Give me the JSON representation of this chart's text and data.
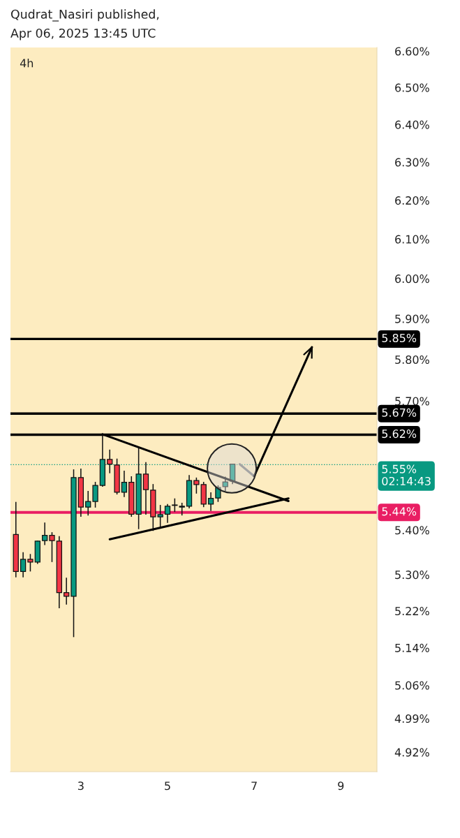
{
  "chart_data": {
    "type": "candlestick",
    "title": "Qudrat_Nasiri published,",
    "subtitle": "Apr 06, 2025 13:45 UTC",
    "annotations": [
      "4h"
    ],
    "log": true,
    "ylim": [
      4.88,
      6.61
    ],
    "yticks": [
      {
        "value": 4.92,
        "label": "4.92%"
      },
      {
        "value": 4.99,
        "label": "4.99%"
      },
      {
        "value": 5.06,
        "label": "5.06%"
      },
      {
        "value": 5.14,
        "label": "5.14%"
      },
      {
        "value": 5.22,
        "label": "5.22%"
      },
      {
        "value": 5.3,
        "label": "5.30%"
      },
      {
        "value": 5.4,
        "label": "5.40%"
      },
      {
        "value": 5.7,
        "label": "5.70%"
      },
      {
        "value": 5.8,
        "label": "5.80%"
      },
      {
        "value": 5.9,
        "label": "5.90%"
      },
      {
        "value": 6.0,
        "label": "6.00%"
      },
      {
        "value": 6.1,
        "label": "6.10%"
      },
      {
        "value": 6.2,
        "label": "6.20%"
      },
      {
        "value": 6.3,
        "label": "6.30%"
      },
      {
        "value": 6.4,
        "label": "6.40%"
      },
      {
        "value": 6.5,
        "label": "6.50%"
      },
      {
        "value": 6.6,
        "label": "6.60%"
      }
    ],
    "xlim": [
      "2025-04-01T09:00",
      "2025-04-09T20:00"
    ],
    "xticks": [
      {
        "value": "2025-04-03",
        "label": "3"
      },
      {
        "value": "2025-04-05",
        "label": "5"
      },
      {
        "value": "2025-04-07",
        "label": "7"
      },
      {
        "value": "2025-04-09",
        "label": "9"
      }
    ],
    "grid": false,
    "legend": false,
    "series": [
      {
        "x": [
          "2025-04-01T12:00",
          "2025-04-01T16:00",
          "2025-04-01T20:00",
          "2025-04-02T00:00",
          "2025-04-02T04:00",
          "2025-04-02T08:00",
          "2025-04-02T12:00",
          "2025-04-02T16:00",
          "2025-04-02T20:00",
          "2025-04-03T00:00",
          "2025-04-03T04:00",
          "2025-04-03T08:00",
          "2025-04-03T12:00",
          "2025-04-03T16:00",
          "2025-04-03T20:00",
          "2025-04-04T00:00",
          "2025-04-04T04:00",
          "2025-04-04T08:00",
          "2025-04-04T12:00",
          "2025-04-04T16:00",
          "2025-04-04T20:00",
          "2025-04-05T00:00",
          "2025-04-05T04:00",
          "2025-04-05T08:00",
          "2025-04-05T12:00",
          "2025-04-05T16:00",
          "2025-04-05T20:00",
          "2025-04-06T00:00",
          "2025-04-06T04:00",
          "2025-04-06T08:00",
          "2025-04-06T12:00"
        ],
        "ohlc": [
          [
            5.39,
            5.464,
            5.294,
            5.307
          ],
          [
            5.307,
            5.35,
            5.294,
            5.334
          ],
          [
            5.334,
            5.346,
            5.307,
            5.328
          ],
          [
            5.328,
            5.376,
            5.324,
            5.375
          ],
          [
            5.376,
            5.417,
            5.366,
            5.388
          ],
          [
            5.388,
            5.395,
            5.328,
            5.376
          ],
          [
            5.375,
            5.386,
            5.226,
            5.26
          ],
          [
            5.26,
            5.293,
            5.234,
            5.252
          ],
          [
            5.252,
            5.539,
            5.163,
            5.52
          ],
          [
            5.52,
            5.541,
            5.43,
            5.452
          ],
          [
            5.452,
            5.489,
            5.433,
            5.465
          ],
          [
            5.465,
            5.51,
            5.451,
            5.502
          ],
          [
            5.502,
            5.621,
            5.499,
            5.562
          ],
          [
            5.562,
            5.585,
            5.53,
            5.551
          ],
          [
            5.549,
            5.564,
            5.481,
            5.486
          ],
          [
            5.486,
            5.536,
            5.475,
            5.509
          ],
          [
            5.509,
            5.523,
            5.43,
            5.436
          ],
          [
            5.436,
            5.59,
            5.402,
            5.528
          ],
          [
            5.528,
            5.556,
            5.435,
            5.492
          ],
          [
            5.491,
            5.505,
            5.398,
            5.43
          ],
          [
            5.43,
            5.457,
            5.403,
            5.435
          ],
          [
            5.436,
            5.459,
            5.416,
            5.454
          ],
          [
            5.456,
            5.472,
            5.441,
            5.457
          ],
          [
            5.452,
            5.462,
            5.433,
            5.454
          ],
          [
            5.454,
            5.526,
            5.449,
            5.513
          ],
          [
            5.513,
            5.52,
            5.483,
            5.504
          ],
          [
            5.504,
            5.51,
            5.452,
            5.459
          ],
          [
            5.459,
            5.486,
            5.443,
            5.472
          ],
          [
            5.473,
            5.502,
            5.464,
            5.497
          ],
          [
            5.499,
            5.522,
            5.489,
            5.51
          ],
          [
            5.512,
            5.552,
            5.505,
            5.551
          ]
        ],
        "colors": [
          "#f23645",
          "#089981",
          "#f23645",
          "#089981",
          "#089981",
          "#f23645",
          "#f23645",
          "#f23645",
          "#089981",
          "#f23645",
          "#089981",
          "#089981",
          "#089981",
          "#f23645",
          "#f23645",
          "#089981",
          "#f23645",
          "#089981",
          "#f23645",
          "#f23645",
          "#089981",
          "#089981",
          "#089981",
          "#089981",
          "#089981",
          "#f23645",
          "#f23645",
          "#089981",
          "#089981",
          "#089981",
          "#089981"
        ]
      },
      {
        "type": "line",
        "color": "#000000",
        "x": [
          "2025-04-03T12:00",
          "2025-04-07T19:00"
        ],
        "values": [
          5.621,
          5.466
        ]
      },
      {
        "type": "line",
        "color": "#000000",
        "x": [
          "2025-04-03T16:00",
          "2025-04-07T19:00"
        ],
        "values": [
          5.379,
          5.472
        ]
      },
      {
        "type": "line",
        "color": "#787878",
        "x": [
          "2025-04-06T16:00",
          "2025-04-07T00:00"
        ],
        "values": [
          5.551,
          5.523
        ]
      },
      {
        "type": "line",
        "color": "#000000",
        "x": [
          "2025-04-07T00:00",
          "2025-04-08T08:00"
        ],
        "values": [
          5.523,
          5.83
        ]
      }
    ],
    "ref_lines": [
      {
        "axis": "y",
        "value": 5.85,
        "label": "5.85%",
        "color": "#000000",
        "line_style": "solid"
      },
      {
        "axis": "y",
        "value": 5.67,
        "label": "5.67%",
        "color": "#000000",
        "line_style": "solid"
      },
      {
        "axis": "y",
        "value": 5.62,
        "label": "5.62%",
        "color": "#000000",
        "line_style": "solid"
      },
      {
        "axis": "y",
        "value": 5.55,
        "label": "5.55%\n02:14:43",
        "color": "#089981",
        "line_style": "dotted"
      },
      {
        "axis": "y",
        "value": 5.44,
        "label": "5.44%",
        "color": "#e91e63",
        "line_style": "solid"
      }
    ]
  }
}
